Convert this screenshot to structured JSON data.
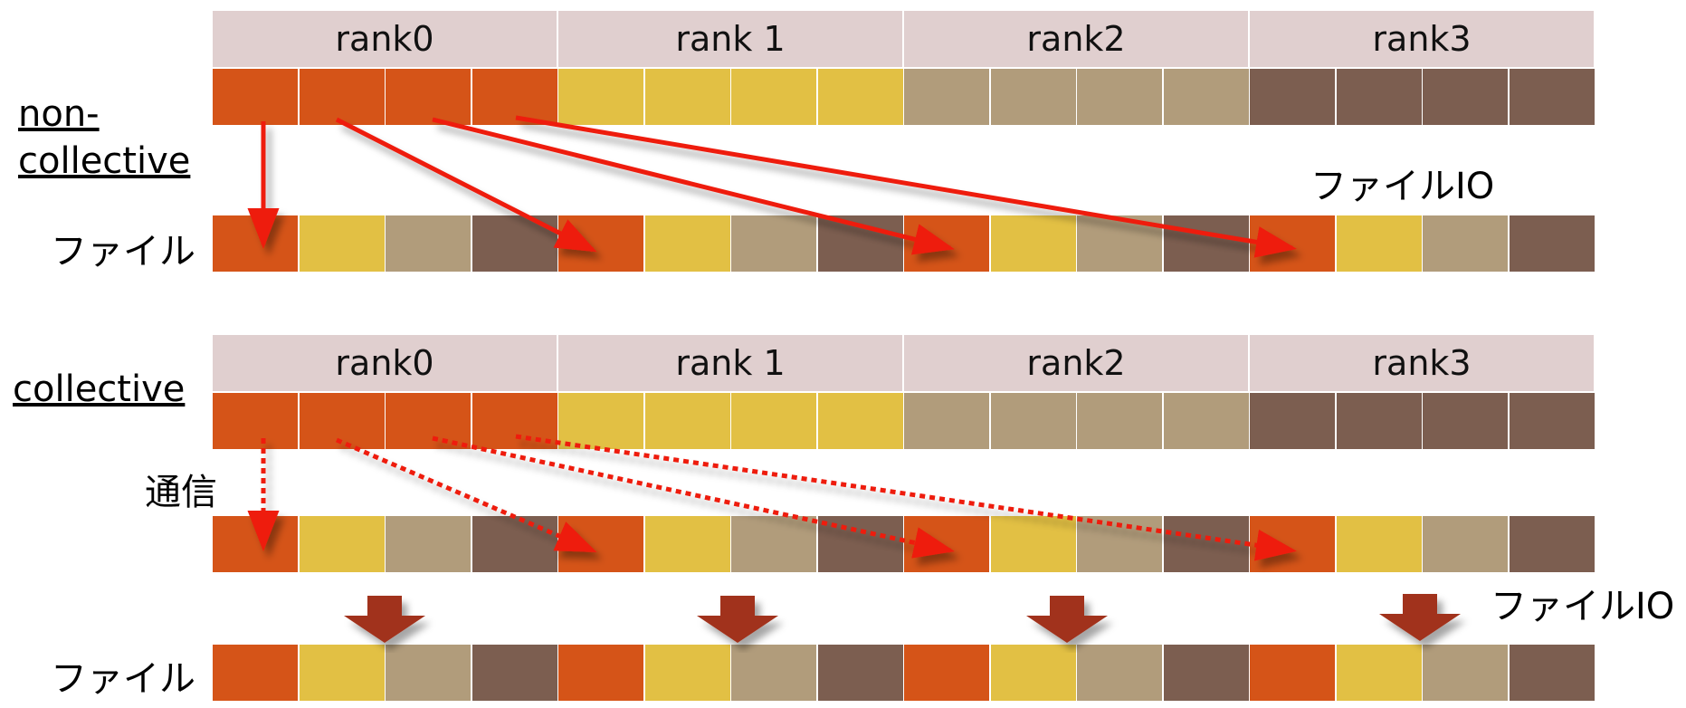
{
  "colors": {
    "rank0": "#d55418",
    "rank1": "#e2c044",
    "rank2": "#b19c7b",
    "rank3": "#7c5e50",
    "header_bg": "#e0cfcf",
    "arrow": "#ee1b0c",
    "block_arrow": "#a1311c"
  },
  "ranks": [
    "rank0",
    "rank 1",
    "rank2",
    "rank3"
  ],
  "noncollective": {
    "label_line1": "non-",
    "label_line2": "collective",
    "file_label": "ファイル",
    "io_label": "ファイルIO"
  },
  "collective": {
    "label": "collective",
    "comm_label": "通信",
    "io_label": "ファイルIO",
    "file_label": "ファイル"
  }
}
